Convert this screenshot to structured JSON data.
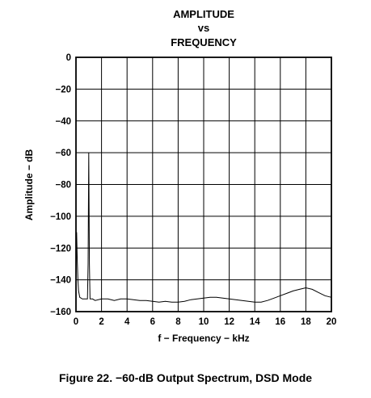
{
  "chart_data": {
    "type": "line",
    "title_lines": [
      "AMPLITUDE",
      "vs",
      "FREQUENCY"
    ],
    "xlabel": "f − Frequency − kHz",
    "ylabel": "Amplitude − dB",
    "xlim": [
      0,
      20
    ],
    "ylim": [
      -160,
      0
    ],
    "xticks": [
      "0",
      "2",
      "4",
      "6",
      "8",
      "10",
      "12",
      "14",
      "16",
      "18",
      "20"
    ],
    "yticks": [
      "0",
      "−20",
      "−40",
      "−60",
      "−80",
      "−100",
      "−120",
      "−140",
      "−160"
    ],
    "grid": true,
    "series": [
      {
        "x": [
          0.05,
          0.1,
          0.15,
          0.2,
          0.3,
          0.5,
          0.7,
          0.9,
          0.95,
          1.0,
          1.05,
          1.1,
          1.3,
          1.5,
          2,
          2.5,
          3,
          3.5,
          4,
          4.5,
          5,
          5.5,
          6,
          6.5,
          7,
          7.5,
          8,
          8.5,
          9,
          9.5,
          10,
          10.5,
          11,
          11.5,
          12,
          12.5,
          13,
          13.5,
          14,
          14.5,
          15,
          15.5,
          16,
          16.5,
          17,
          17.5,
          18,
          18.5,
          19,
          19.5,
          20
        ],
        "y": [
          -110,
          -128,
          -140,
          -147,
          -151,
          -152,
          -152,
          -152,
          -130,
          -60,
          -130,
          -152,
          -152,
          -153,
          -152,
          -152,
          -153,
          -152,
          -152,
          -152.5,
          -153,
          -153,
          -153.5,
          -154,
          -153.5,
          -154,
          -154,
          -153.5,
          -152.5,
          -152,
          -151.5,
          -151,
          -151,
          -151.5,
          -152,
          -152.5,
          -153,
          -153.5,
          -154,
          -154,
          -153,
          -151.5,
          -150,
          -148.5,
          -147,
          -146,
          -145,
          -146,
          -148,
          -150,
          -151
        ]
      }
    ]
  },
  "caption": "Figure 22. −60-dB Output Spectrum, DSD Mode"
}
